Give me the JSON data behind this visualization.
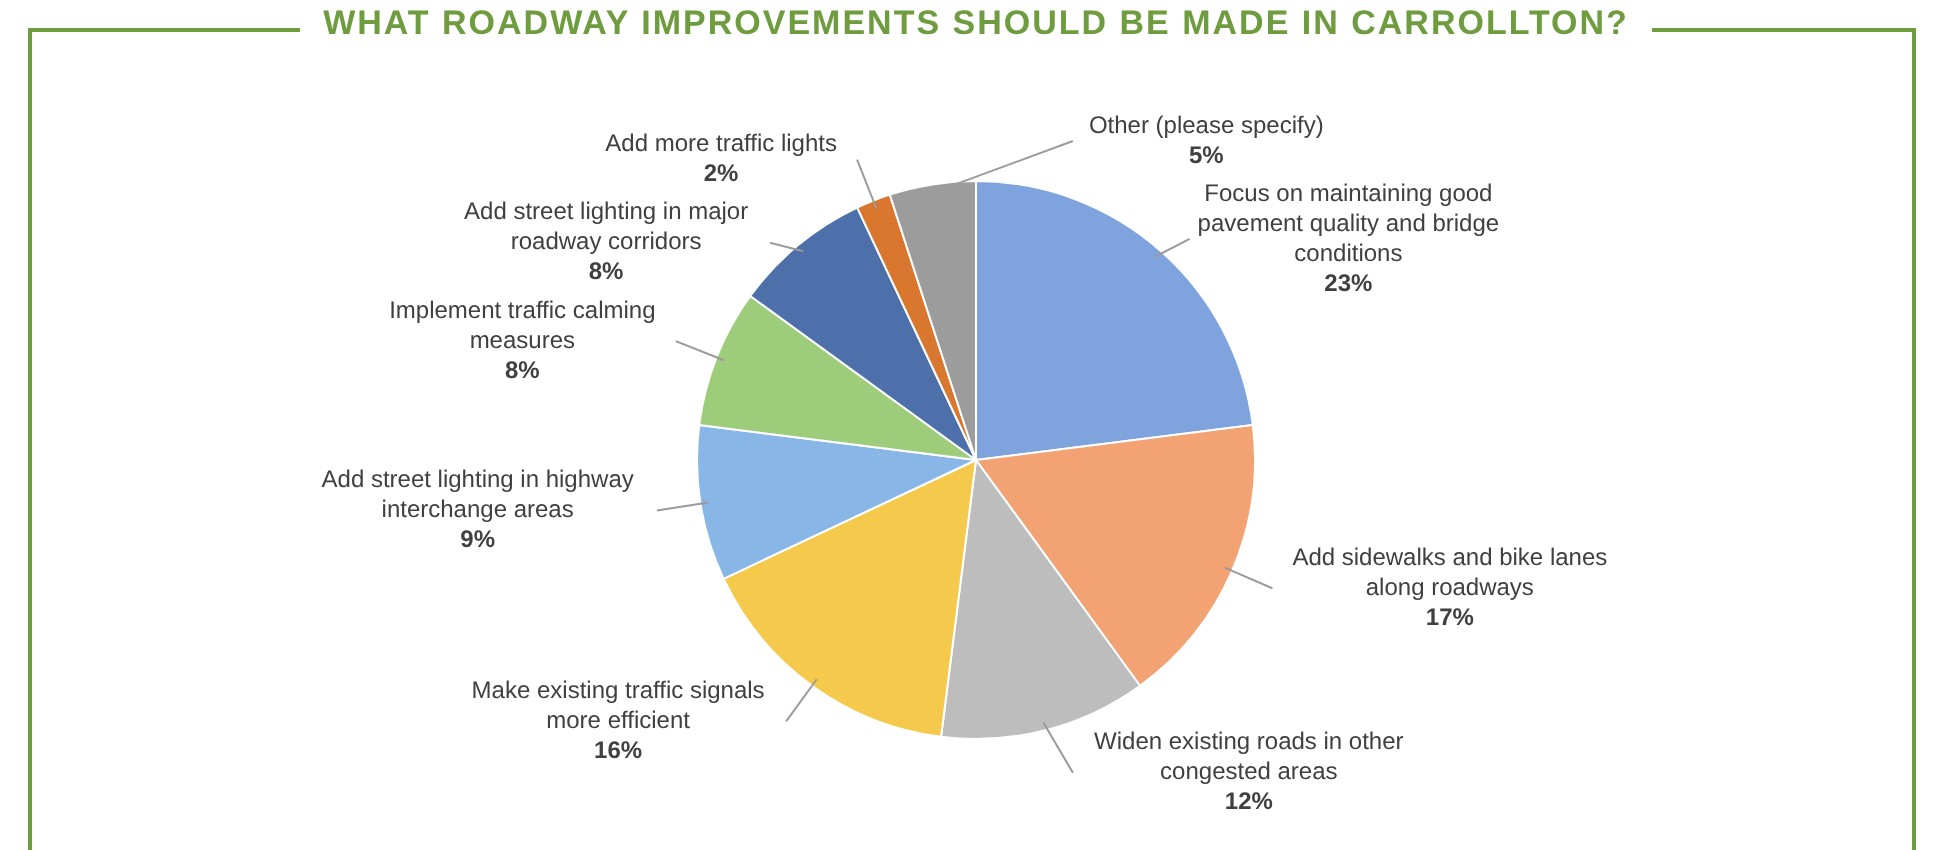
{
  "chart_data": {
    "type": "pie",
    "title": "WHAT ROADWAY IMPROVEMENTS SHOULD BE MADE IN CARROLLTON?",
    "categories": [
      "Focus on maintaining good pavement quality and bridge conditions",
      "Add sidewalks and bike lanes along roadways",
      "Widen existing roads in other congested areas",
      "Make existing traffic signals more efficient",
      "Add street lighting in highway interchange areas",
      "Implement traffic calming measures",
      "Add street lighting in major roadway corridors",
      "Add more traffic lights",
      "Other (please specify)"
    ],
    "values": [
      23,
      17,
      12,
      16,
      9,
      8,
      8,
      2,
      5
    ],
    "colors": [
      "#7fa3dc",
      "#f2a273",
      "#bdbdbd",
      "#f5c94c",
      "#88b6e6",
      "#9dcd7a",
      "#4d70aa",
      "#d9772f",
      "#9c9c9c"
    ],
    "value_labels": [
      "23%",
      "17%",
      "12%",
      "16%",
      "9%",
      "8%",
      "8%",
      "2%",
      "5%"
    ],
    "legend": false
  }
}
